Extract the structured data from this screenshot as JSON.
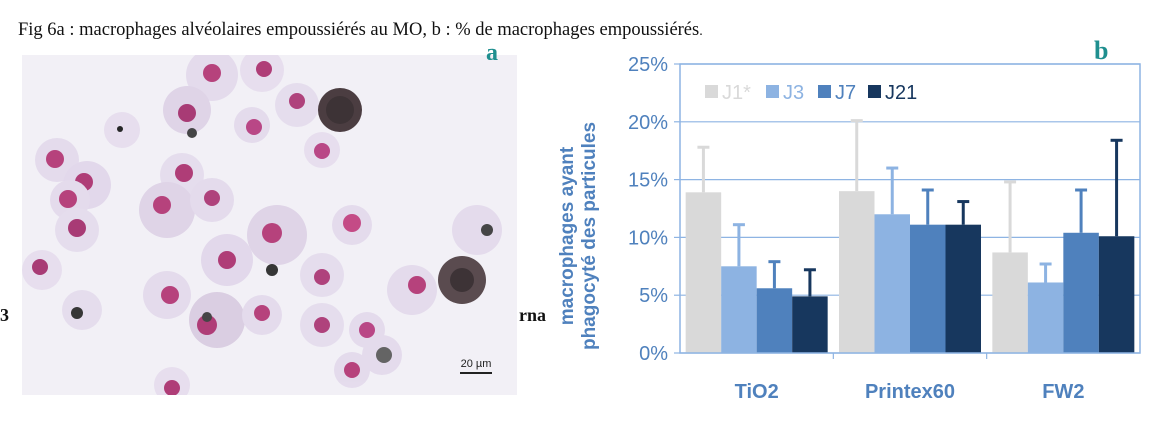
{
  "caption": {
    "main": "Fig 6a : macrophages alvéolaires empoussiérés au MO, b : % de macrophages empoussiérés",
    "tail": "."
  },
  "panel_a": {
    "label": "a",
    "scale_bar_label": "20 µm"
  },
  "panel_b": {
    "label": "b"
  },
  "background_text": {
    "left": "3",
    "right": "rna"
  },
  "colors": {
    "J1*": "#d9d9d9",
    "J3": "#8db3e2",
    "J7": "#4f81bd",
    "J21": "#17375e",
    "axis_text": "#4f81bd",
    "grid": "#8eb4e3",
    "panel_label": "#1f8f8f"
  },
  "chart_data": {
    "type": "bar",
    "ylabel": "macrophages ayant phagocyté des particules",
    "ylabel_lines": [
      "macrophages ayant",
      "phagocyté des particules"
    ],
    "categories": [
      "TiO2",
      "Printex60",
      "FW2"
    ],
    "yticks": [
      "0%",
      "5%",
      "10%",
      "15%",
      "20%",
      "25%"
    ],
    "ylim": [
      0,
      25
    ],
    "grid": true,
    "legend_position": "top-left",
    "series": [
      {
        "name": "J1*",
        "values": [
          13.9,
          14.0,
          8.7
        ],
        "errors": [
          3.9,
          6.1,
          6.1
        ]
      },
      {
        "name": "J3",
        "values": [
          7.5,
          12.0,
          6.1
        ],
        "errors": [
          3.6,
          4.0,
          1.6
        ]
      },
      {
        "name": "J7",
        "values": [
          5.6,
          11.1,
          10.4
        ],
        "errors": [
          2.3,
          3.0,
          3.7
        ]
      },
      {
        "name": "J21",
        "values": [
          4.9,
          11.1,
          10.1
        ],
        "errors": [
          2.3,
          2.0,
          8.3
        ]
      }
    ]
  }
}
